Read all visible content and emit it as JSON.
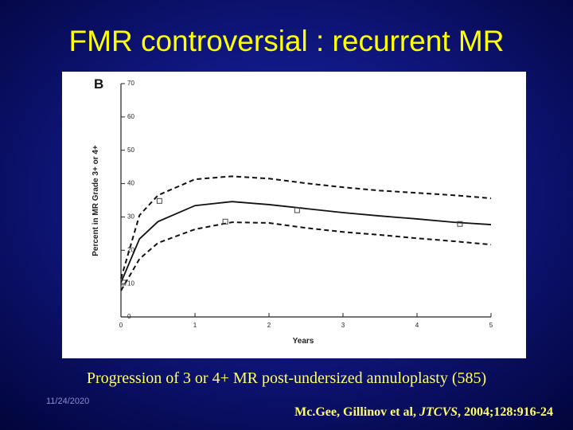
{
  "slide": {
    "title": "FMR controversial : recurrent MR",
    "caption": "Progression of 3 or 4+ MR post-undersized annuloplasty (585)",
    "date": "11/24/2020",
    "citation": [
      "Mc.Gee, Gillinov et al, ",
      "JTCVS",
      ", 2004;128:916-24"
    ]
  },
  "chart_data": {
    "type": "line",
    "panel_label": "B",
    "x_label": "Years",
    "y_label": "Percent in MR Grade 3+ or 4+",
    "x": [
      0,
      0.25,
      0.5,
      1,
      1.5,
      2,
      2.5,
      3,
      3.5,
      4,
      4.5,
      5
    ],
    "series": [
      {
        "color": "#111111",
        "style": "solid",
        "values": [
          10.3,
          23.4,
          28.6,
          33.4,
          34.6,
          33.7,
          32.5,
          31.3,
          30.3,
          29.4,
          28.4,
          27.7
        ]
      },
      {
        "color": "#111111",
        "style": "dashed",
        "values": [
          11.5,
          30.5,
          36.5,
          41.3,
          42.2,
          41.5,
          40.1,
          38.9,
          37.9,
          37.2,
          36.5,
          35.6
        ]
      },
      {
        "color": "#111111",
        "style": "dashed",
        "values": [
          7.9,
          17.4,
          22.2,
          26.3,
          28.4,
          28.2,
          26.7,
          25.5,
          24.6,
          23.6,
          22.7,
          21.7
        ]
      }
    ],
    "points": {
      "color": "#444444",
      "x": [
        0.03,
        0.52,
        1.41,
        2.38,
        4.58
      ],
      "y": [
        10.3,
        34.8,
        28.6,
        32.0,
        27.9
      ]
    },
    "xlim": [
      0,
      5
    ],
    "xticks": [
      0,
      1,
      2,
      3,
      4,
      5
    ],
    "ylim": [
      0,
      70
    ],
    "yticks": [
      0,
      10,
      20,
      30,
      40,
      50,
      60,
      70
    ]
  }
}
